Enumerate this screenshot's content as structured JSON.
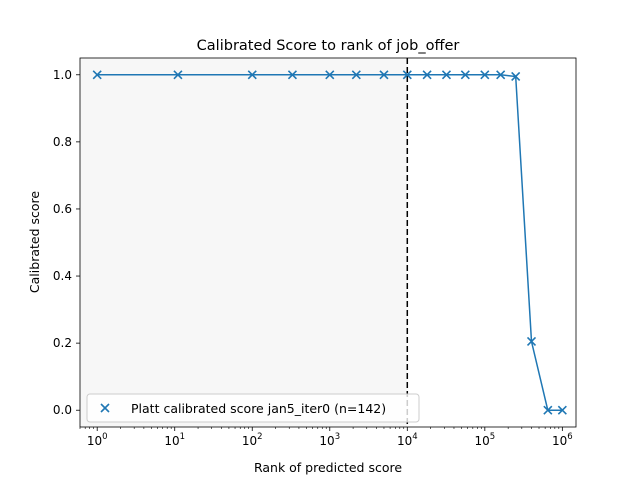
{
  "chart_data": {
    "type": "scatter",
    "title": "Calibrated Score to rank of job_offer",
    "xlabel": "Rank of predicted score",
    "ylabel": "Calibrated score",
    "xscale": "log",
    "xlim": [
      0.6,
      1500000
    ],
    "ylim": [
      -0.05,
      1.05
    ],
    "grid": false,
    "legend_position": "lower-left",
    "x_ticks": [
      {
        "value": 1,
        "base": "10",
        "exp": "0"
      },
      {
        "value": 10,
        "base": "10",
        "exp": "1"
      },
      {
        "value": 100,
        "base": "10",
        "exp": "2"
      },
      {
        "value": 1000,
        "base": "10",
        "exp": "3"
      },
      {
        "value": 10000,
        "base": "10",
        "exp": "4"
      },
      {
        "value": 100000,
        "base": "10",
        "exp": "5"
      },
      {
        "value": 1000000,
        "base": "10",
        "exp": "6"
      }
    ],
    "y_ticks": [
      {
        "value": 0.0,
        "label": "0.0"
      },
      {
        "value": 0.2,
        "label": "0.2"
      },
      {
        "value": 0.4,
        "label": "0.4"
      },
      {
        "value": 0.6,
        "label": "0.6"
      },
      {
        "value": 0.8,
        "label": "0.8"
      },
      {
        "value": 1.0,
        "label": "1.0"
      }
    ],
    "series": [
      {
        "name": "Platt calibrated score jan5_iter0 (n=142)",
        "color": "#1f77b4",
        "marker": "x",
        "x": [
          1,
          11,
          100,
          330,
          1000,
          2200,
          5000,
          10000,
          18000,
          32000,
          56000,
          100000,
          160000,
          250000,
          400000,
          650000,
          1000000
        ],
        "y": [
          1.0,
          1.0,
          1.0,
          1.0,
          1.0,
          1.0,
          1.0,
          1.0,
          1.0,
          1.0,
          1.0,
          1.0,
          1.0,
          0.995,
          0.205,
          0.0,
          0.0
        ]
      }
    ],
    "vline": {
      "x": 10000,
      "style": "dashed",
      "color": "#000000"
    },
    "shaded_region": {
      "x_start": 0.6,
      "x_end": 10000,
      "color": "#f7f7f7"
    }
  }
}
